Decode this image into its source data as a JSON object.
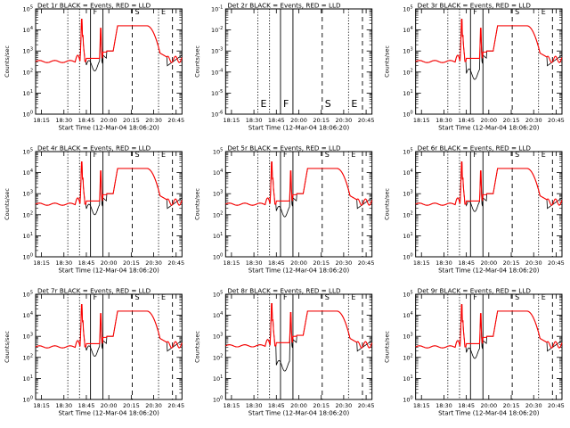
{
  "colors": {
    "events": "#000000",
    "lld": "#ff0000",
    "frame": "#000000",
    "background": "#ffffff"
  },
  "chart_data": [
    {
      "type": "line",
      "title": "Det 1r BLACK = Events, RED = LLD",
      "xlabel": "Start Time (12-Mar-04 18:06:20)",
      "ylabel": "Counts/sec",
      "xticks": [
        "18:15",
        "18:30",
        "18:45",
        "20:00",
        "20:15",
        "20:30",
        "20:45"
      ],
      "yticks": [
        "10^0",
        "10^1",
        "10^2",
        "10^3",
        "10^4",
        "10^5"
      ],
      "ylim": [
        1,
        100000
      ],
      "has_data": true,
      "baseline_exp": 2.5,
      "dip_exp": 2.3,
      "red_dip_exp": 2.55,
      "markers": [
        {
          "t": 0.22,
          "style": "dotted"
        },
        {
          "t": 0.3,
          "style": "dotted"
        },
        {
          "t": 0.375,
          "style": "solid",
          "label": "F"
        },
        {
          "t": 0.46,
          "style": "solid"
        },
        {
          "t": 0.66,
          "style": "dashed",
          "label": "S"
        },
        {
          "t": 0.84,
          "style": "dotted",
          "label": "E"
        },
        {
          "t": 0.935,
          "style": "dashed"
        }
      ]
    },
    {
      "type": "line",
      "title": "Det 2r BLACK = Events, RED = LLD",
      "xlabel": "Start Time (12-Mar-04 18:06:20)",
      "ylabel": "Counts/sec",
      "xticks": [
        "18:15",
        "18:30",
        "18:45",
        "20:00",
        "20:15",
        "20:30",
        "20:45"
      ],
      "yticks": [
        "10^-6",
        "10^-5",
        "10^-4",
        "10^-3",
        "10^-2",
        "10^-1"
      ],
      "ylim": [
        1e-06,
        0.1
      ],
      "has_data": false,
      "markers": [
        {
          "t": 0.22,
          "style": "dotted",
          "label": "E"
        },
        {
          "t": 0.3,
          "style": "dotted"
        },
        {
          "t": 0.375,
          "style": "solid",
          "label": "F"
        },
        {
          "t": 0.46,
          "style": "solid"
        },
        {
          "t": 0.66,
          "style": "dashed",
          "label": "S"
        },
        {
          "t": 0.84,
          "style": "dotted",
          "label": "E"
        },
        {
          "t": 0.935,
          "style": "dashed"
        }
      ]
    },
    {
      "type": "line",
      "title": "Det 3r BLACK = Events, RED = LLD",
      "xlabel": "Start Time (12-Mar-04 18:06:20)",
      "ylabel": "Counts/sec",
      "xticks": [
        "18:15",
        "18:30",
        "18:45",
        "20:00",
        "20:15",
        "20:30",
        "20:45"
      ],
      "yticks": [
        "10^0",
        "10^1",
        "10^2",
        "10^3",
        "10^4",
        "10^5"
      ],
      "ylim": [
        1,
        100000
      ],
      "has_data": true,
      "baseline_exp": 2.5,
      "dip_exp": 1.9,
      "red_dip_exp": 2.3,
      "markers": [
        {
          "t": 0.22,
          "style": "dotted"
        },
        {
          "t": 0.3,
          "style": "dotted"
        },
        {
          "t": 0.375,
          "style": "solid",
          "label": "F"
        },
        {
          "t": 0.46,
          "style": "solid"
        },
        {
          "t": 0.66,
          "style": "dashed",
          "label": "S"
        },
        {
          "t": 0.84,
          "style": "dotted",
          "label": "E"
        },
        {
          "t": 0.935,
          "style": "dashed"
        }
      ]
    },
    {
      "type": "line",
      "title": "Det 4r BLACK = Events, RED = LLD",
      "xlabel": "Start Time (12-Mar-04 18:06:20)",
      "ylabel": "Counts/sec",
      "xticks": [
        "18:15",
        "18:30",
        "18:45",
        "20:00",
        "20:15",
        "20:30",
        "20:45"
      ],
      "yticks": [
        "10^0",
        "10^1",
        "10^2",
        "10^3",
        "10^4",
        "10^5"
      ],
      "ylim": [
        1,
        100000
      ],
      "has_data": true,
      "baseline_exp": 2.5,
      "dip_exp": 2.25,
      "red_dip_exp": 2.6,
      "markers": [
        {
          "t": 0.22,
          "style": "dotted"
        },
        {
          "t": 0.3,
          "style": "dotted"
        },
        {
          "t": 0.375,
          "style": "solid",
          "label": "F"
        },
        {
          "t": 0.46,
          "style": "solid"
        },
        {
          "t": 0.66,
          "style": "dashed",
          "label": "S"
        },
        {
          "t": 0.84,
          "style": "dotted",
          "label": "E"
        },
        {
          "t": 0.935,
          "style": "dashed"
        }
      ]
    },
    {
      "type": "line",
      "title": "Det 5r BLACK = Events, RED = LLD",
      "xlabel": "Start Time (12-Mar-04 18:06:20)",
      "ylabel": "Counts/sec",
      "xticks": [
        "18:15",
        "18:30",
        "18:45",
        "20:00",
        "20:15",
        "20:30",
        "20:45"
      ],
      "yticks": [
        "10^0",
        "10^1",
        "10^2",
        "10^3",
        "10^4",
        "10^5"
      ],
      "ylim": [
        1,
        100000
      ],
      "has_data": true,
      "baseline_exp": 2.5,
      "dip_exp": 2.15,
      "red_dip_exp": 2.5,
      "markers": [
        {
          "t": 0.22,
          "style": "dotted"
        },
        {
          "t": 0.3,
          "style": "dotted"
        },
        {
          "t": 0.375,
          "style": "solid",
          "label": "F"
        },
        {
          "t": 0.46,
          "style": "solid"
        },
        {
          "t": 0.66,
          "style": "dashed",
          "label": "S"
        },
        {
          "t": 0.84,
          "style": "dotted",
          "label": "E"
        },
        {
          "t": 0.935,
          "style": "dashed"
        }
      ]
    },
    {
      "type": "line",
      "title": "Det 6r BLACK = Events, RED = LLD",
      "xlabel": "Start Time (12-Mar-04 18:06:20)",
      "ylabel": "Counts/sec",
      "xticks": [
        "18:15",
        "18:30",
        "18:45",
        "20:00",
        "20:15",
        "20:30",
        "20:45"
      ],
      "yticks": [
        "10^0",
        "10^1",
        "10^2",
        "10^3",
        "10^4",
        "10^5"
      ],
      "ylim": [
        1,
        100000
      ],
      "has_data": true,
      "baseline_exp": 2.5,
      "dip_exp": 2.4,
      "red_dip_exp": 2.6,
      "markers": [
        {
          "t": 0.22,
          "style": "dotted"
        },
        {
          "t": 0.3,
          "style": "dotted"
        },
        {
          "t": 0.375,
          "style": "solid",
          "label": "F"
        },
        {
          "t": 0.46,
          "style": "solid"
        },
        {
          "t": 0.66,
          "style": "dashed",
          "label": "S"
        },
        {
          "t": 0.84,
          "style": "dotted",
          "label": "E"
        },
        {
          "t": 0.935,
          "style": "dashed"
        }
      ]
    },
    {
      "type": "line",
      "title": "Det 7r BLACK = Events, RED = LLD",
      "xlabel": "Start Time (12-Mar-04 18:06:20)",
      "ylabel": "Counts/sec",
      "xticks": [
        "18:15",
        "18:30",
        "18:45",
        "20:00",
        "20:15",
        "20:30",
        "20:45"
      ],
      "yticks": [
        "10^0",
        "10^1",
        "10^2",
        "10^3",
        "10^4",
        "10^5"
      ],
      "ylim": [
        1,
        100000
      ],
      "has_data": true,
      "baseline_exp": 2.5,
      "dip_exp": 2.3,
      "red_dip_exp": 2.55,
      "markers": [
        {
          "t": 0.22,
          "style": "dotted"
        },
        {
          "t": 0.3,
          "style": "dotted"
        },
        {
          "t": 0.375,
          "style": "solid",
          "label": "F"
        },
        {
          "t": 0.46,
          "style": "solid"
        },
        {
          "t": 0.66,
          "style": "dashed",
          "label": "S"
        },
        {
          "t": 0.84,
          "style": "dotted",
          "label": "E"
        },
        {
          "t": 0.935,
          "style": "dashed"
        }
      ]
    },
    {
      "type": "line",
      "title": "Det 8r BLACK = Events, RED = LLD",
      "xlabel": "Start Time (12-Mar-04 18:06:20)",
      "ylabel": "Counts/sec",
      "xticks": [
        "18:15",
        "18:30",
        "18:45",
        "20:00",
        "20:15",
        "20:30",
        "20:45"
      ],
      "yticks": [
        "10^0",
        "10^1",
        "10^2",
        "10^3",
        "10^4",
        "10^5"
      ],
      "ylim": [
        1,
        100000
      ],
      "has_data": true,
      "baseline_exp": 2.55,
      "dip_exp": 1.6,
      "red_dip_exp": 2.2,
      "markers": [
        {
          "t": 0.22,
          "style": "dotted"
        },
        {
          "t": 0.3,
          "style": "dotted"
        },
        {
          "t": 0.375,
          "style": "solid",
          "label": "F"
        },
        {
          "t": 0.46,
          "style": "solid"
        },
        {
          "t": 0.66,
          "style": "dashed",
          "label": "S"
        },
        {
          "t": 0.84,
          "style": "dotted",
          "label": "E"
        },
        {
          "t": 0.935,
          "style": "dashed"
        }
      ]
    },
    {
      "type": "line",
      "title": "Det 9r BLACK = Events, RED = LLD",
      "xlabel": "Start Time (12-Mar-04 18:06:20)",
      "ylabel": "Counts/sec",
      "xticks": [
        "18:15",
        "18:30",
        "18:45",
        "20:00",
        "20:15",
        "20:30",
        "20:45"
      ],
      "yticks": [
        "10^0",
        "10^1",
        "10^2",
        "10^3",
        "10^4",
        "10^5"
      ],
      "ylim": [
        1,
        100000
      ],
      "has_data": true,
      "baseline_exp": 2.5,
      "dip_exp": 2.2,
      "red_dip_exp": 2.55,
      "markers": [
        {
          "t": 0.22,
          "style": "dotted"
        },
        {
          "t": 0.3,
          "style": "dotted"
        },
        {
          "t": 0.375,
          "style": "solid",
          "label": "F"
        },
        {
          "t": 0.46,
          "style": "solid"
        },
        {
          "t": 0.66,
          "style": "dashed",
          "label": "S"
        },
        {
          "t": 0.84,
          "style": "dotted",
          "label": "E"
        },
        {
          "t": 0.935,
          "style": "dashed"
        }
      ]
    }
  ]
}
